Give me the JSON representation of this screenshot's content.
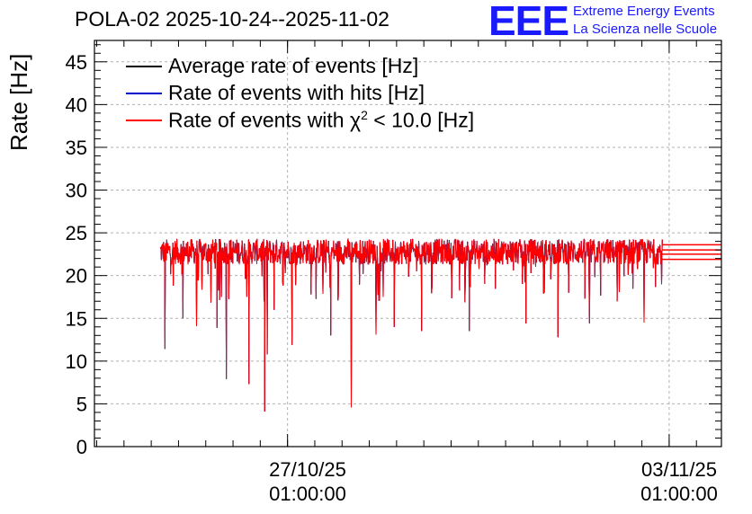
{
  "chart_data": {
    "type": "line",
    "title": "POLA-02 2025-10-24--2025-11-02",
    "ylabel": "Rate [Hz]",
    "xlabel": "",
    "ylim": [
      0,
      47.5
    ],
    "yticks": [
      0,
      5,
      10,
      15,
      20,
      25,
      30,
      35,
      40,
      45
    ],
    "xticks": [
      {
        "date": "2025-10-27T01:00:00",
        "label_line1": "27/10/25",
        "label_line2": "01:00:00"
      },
      {
        "date": "2025-11-03T01:00:00",
        "label_line1": "03/11/25",
        "label_line2": "01:00:00"
      }
    ],
    "xlim": [
      "2025-10-23T12:00:00",
      "2025-11-04T00:00:00"
    ],
    "grid": true,
    "legend_position": "top-left",
    "series": [
      {
        "name": "Average rate of events [Hz]",
        "color": "#000000",
        "baseline": 22.8,
        "noise": 1.5
      },
      {
        "name": "Rate of events with hits [Hz]",
        "color": "#0000cc",
        "baseline": 22.8,
        "noise": 1.5
      },
      {
        "name": "Rate of events with χ² < 10.0 [Hz]",
        "label_main": "Rate of events with χ",
        "label_sup": "2",
        "label_rest": " < 10.0 [Hz]",
        "color": "#ff0000",
        "baseline": 22.8,
        "noise": 1.5
      }
    ],
    "data_start": "2025-10-24T17:00:00",
    "data_end": "2025-11-02T22:00:00",
    "dips": [
      {
        "date": "2025-10-24T19:00:00",
        "value": 11.4
      },
      {
        "date": "2025-10-25T03:00:00",
        "value": 15.0
      },
      {
        "date": "2025-10-25T09:00:00",
        "value": 14.1
      },
      {
        "date": "2025-10-25T18:00:00",
        "value": 13.9
      },
      {
        "date": "2025-10-25T22:00:00",
        "value": 7.9
      },
      {
        "date": "2025-10-26T08:00:00",
        "value": 7.3
      },
      {
        "date": "2025-10-26T15:00:00",
        "value": 4.1
      },
      {
        "date": "2025-10-26T16:00:00",
        "value": 10.8
      },
      {
        "date": "2025-10-26T19:00:00",
        "value": 16.0
      },
      {
        "date": "2025-10-27T03:00:00",
        "value": 11.9
      },
      {
        "date": "2025-10-27T20:00:00",
        "value": 13.0
      },
      {
        "date": "2025-10-28T05:00:00",
        "value": 4.6
      },
      {
        "date": "2025-10-28T16:00:00",
        "value": 13.1
      },
      {
        "date": "2025-10-29T00:00:00",
        "value": 14.0
      },
      {
        "date": "2025-10-29T12:00:00",
        "value": 13.5
      },
      {
        "date": "2025-10-30T09:00:00",
        "value": 13.5
      },
      {
        "date": "2025-10-31T10:00:00",
        "value": 14.4
      },
      {
        "date": "2025-11-01T00:00:00",
        "value": 12.8
      },
      {
        "date": "2025-11-01T14:00:00",
        "value": 14.4
      },
      {
        "date": "2025-11-02T14:00:00",
        "value": 14.5
      }
    ]
  },
  "logo": {
    "mark": "EEE",
    "line1": "Extreme Energy Events",
    "line2": "La Scienza nelle Scuole",
    "color": "#1a1aff"
  }
}
